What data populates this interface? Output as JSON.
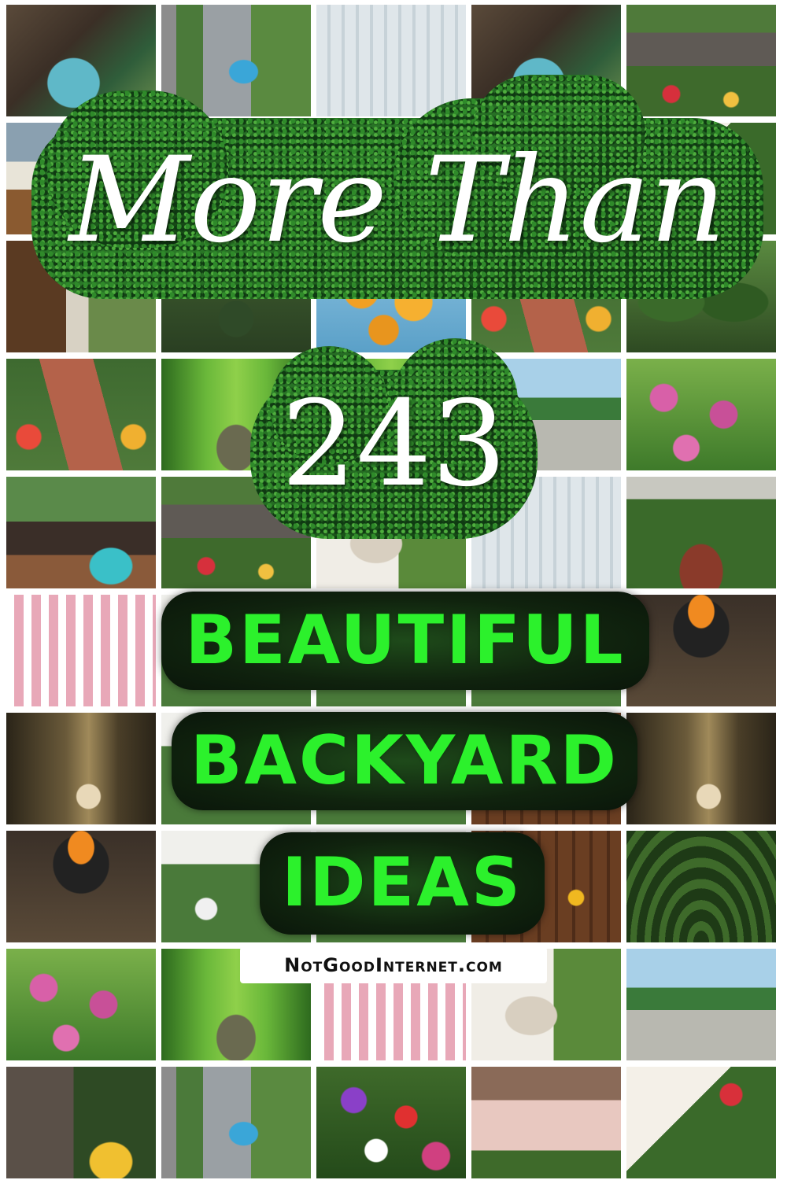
{
  "headline": {
    "line1": "More Than",
    "line2": "243",
    "line3": "BEAUTIFUL",
    "line4": "BACKYARD",
    "line5": "IDEAS"
  },
  "site": {
    "domain": "NotGoodInternet.com"
  },
  "colors": {
    "title_text": "#ffffff",
    "green_text": "#2cf12c",
    "hedge_green": "#2b7a28",
    "dark_pill": "#10230e",
    "badge_background": "#ffffff"
  },
  "mosaic": {
    "columns": 5,
    "rows": 10,
    "tiles": [
      "pool-deck",
      "aerial-pool",
      "city-greenery",
      "pool-deck",
      "stone-cottage",
      "house-siding",
      "house-window",
      "door-frame",
      "house-siding",
      "red-flower-bush",
      "wooden-door",
      "rose-arch",
      "orange-poppies",
      "brick-path",
      "topiary",
      "brick-path",
      "green-tunnel",
      "tunnel",
      "palm-promenade",
      "coneflowers",
      "patio-hot-tub",
      "stone-cottage",
      "white-arches",
      "city-greenery",
      "ivy-brick-wall",
      "pink-house",
      "garden",
      "garden",
      "garden",
      "fire-pit",
      "forest-mist",
      "garden",
      "garden",
      "garden",
      "forest-mist",
      "fire-pit",
      "white-house-garden",
      "garden",
      "wooden-wall-lanterns",
      "rose-arbor",
      "coneflowers",
      "green-tunnel",
      "pink-house",
      "white-arches",
      "palm-promenade",
      "stone-wall-garden",
      "aerial-pool",
      "anemones",
      "pink-cottage",
      "sunny-roses"
    ]
  }
}
